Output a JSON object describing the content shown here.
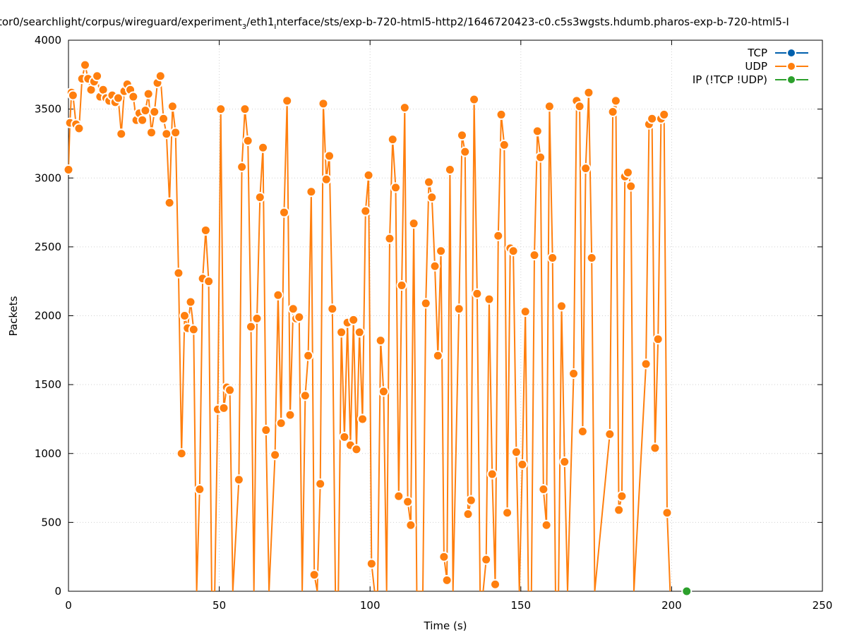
{
  "chart_data": {
    "type": "line",
    "title": "tor0/searchlight/corpus/wireguard/experiment",
    "title_sub": "3",
    "title_mid": "/eth1",
    "title_sub2": "I",
    "title_end": "nterface/sts/exp-b-720-html5-http2/1646720423-c0.c5s3wgsts.hdumb.pharos-exp-b-720-html5-I",
    "xlabel": "Time (s)",
    "ylabel": "Packets",
    "xlim": [
      0,
      250
    ],
    "ylim": [
      0,
      4000
    ],
    "x_ticks": [
      0,
      50,
      100,
      150,
      200,
      250
    ],
    "y_ticks": [
      0,
      500,
      1000,
      1500,
      2000,
      2500,
      3000,
      3500,
      4000
    ],
    "grid": true,
    "legend_position": "top-right",
    "colors": {
      "TCP": "#0060ad",
      "UDP": "#ff7f0e",
      "IP": "#2ca02c"
    },
    "series": [
      {
        "name": "TCP",
        "points": []
      },
      {
        "name": "UDP",
        "points": [
          [
            0,
            3060
          ],
          [
            0.5,
            3400
          ],
          [
            1,
            3620
          ],
          [
            1.5,
            3600
          ],
          [
            2.5,
            3390
          ],
          [
            3.5,
            3360
          ],
          [
            4.5,
            3720
          ],
          [
            5.5,
            3820
          ],
          [
            6.5,
            3720
          ],
          [
            7.5,
            3640
          ],
          [
            8.5,
            3700
          ],
          [
            9.5,
            3740
          ],
          [
            10.5,
            3590
          ],
          [
            11.5,
            3640
          ],
          [
            12.5,
            3580
          ],
          [
            13.5,
            3560
          ],
          [
            14.5,
            3600
          ],
          [
            15.5,
            3550
          ],
          [
            16.5,
            3580
          ],
          [
            17.5,
            3320
          ],
          [
            18.5,
            3630
          ],
          [
            19.5,
            3680
          ],
          [
            20.5,
            3640
          ],
          [
            21.5,
            3590
          ],
          [
            22.5,
            3420
          ],
          [
            23.5,
            3470
          ],
          [
            24.5,
            3420
          ],
          [
            25.5,
            3490
          ],
          [
            26.5,
            3610
          ],
          [
            27.5,
            3330
          ],
          [
            28.5,
            3480
          ],
          [
            29.5,
            3690
          ],
          [
            30.5,
            3740
          ],
          [
            31.5,
            3430
          ],
          [
            32.5,
            3320
          ],
          [
            33.5,
            2820
          ],
          [
            34.5,
            3520
          ],
          [
            35.5,
            3330
          ],
          [
            36.5,
            2310
          ],
          [
            37.5,
            1000
          ],
          [
            38.5,
            2000
          ],
          [
            39.5,
            1910
          ],
          [
            40.5,
            2100
          ],
          [
            41.5,
            1900
          ],
          [
            42.5,
            0
          ],
          [
            43.5,
            740
          ],
          [
            44.5,
            2270
          ],
          [
            45.5,
            2620
          ],
          [
            46.5,
            2250
          ],
          [
            47.5,
            0
          ],
          [
            48.5,
            0
          ],
          [
            49.5,
            1320
          ],
          [
            50.5,
            3500
          ],
          [
            51.5,
            1330
          ],
          [
            52.5,
            1480
          ],
          [
            53.5,
            1460
          ],
          [
            54.5,
            0
          ],
          [
            56.5,
            810
          ],
          [
            57.5,
            3080
          ],
          [
            58.5,
            3500
          ],
          [
            59.5,
            3270
          ],
          [
            60.5,
            1920
          ],
          [
            61.5,
            0
          ],
          [
            62.5,
            1980
          ],
          [
            63.5,
            2860
          ],
          [
            64.5,
            3220
          ],
          [
            65.5,
            1170
          ],
          [
            66.5,
            0
          ],
          [
            68.5,
            990
          ],
          [
            69.5,
            2150
          ],
          [
            70.5,
            1220
          ],
          [
            71.5,
            2750
          ],
          [
            72.5,
            3560
          ],
          [
            73.5,
            1280
          ],
          [
            74.5,
            2050
          ],
          [
            75.5,
            1980
          ],
          [
            76.5,
            1990
          ],
          [
            77.5,
            0
          ],
          [
            78.5,
            1420
          ],
          [
            79.5,
            1710
          ],
          [
            80.5,
            2900
          ],
          [
            81.5,
            120
          ],
          [
            82.5,
            0
          ],
          [
            83.5,
            780
          ],
          [
            84.5,
            3540
          ],
          [
            85.5,
            2990
          ],
          [
            86.5,
            3160
          ],
          [
            87.5,
            2050
          ],
          [
            88.5,
            0
          ],
          [
            89.5,
            0
          ],
          [
            90.5,
            1880
          ],
          [
            91.5,
            1120
          ],
          [
            92.5,
            1950
          ],
          [
            93.5,
            1060
          ],
          [
            94.5,
            1970
          ],
          [
            95.5,
            1030
          ],
          [
            96.5,
            1880
          ],
          [
            97.5,
            1250
          ],
          [
            98.5,
            2760
          ],
          [
            99.5,
            3020
          ],
          [
            100.5,
            200
          ],
          [
            101.5,
            0
          ],
          [
            102.5,
            0
          ],
          [
            103.5,
            1820
          ],
          [
            104.5,
            1450
          ],
          [
            105.5,
            0
          ],
          [
            106.5,
            2560
          ],
          [
            107.5,
            3280
          ],
          [
            108.5,
            2930
          ],
          [
            109.5,
            690
          ],
          [
            110.5,
            2220
          ],
          [
            111.5,
            3510
          ],
          [
            112.5,
            650
          ],
          [
            113.5,
            480
          ],
          [
            114.5,
            2670
          ],
          [
            115.5,
            0
          ],
          [
            117.5,
            0
          ],
          [
            118.5,
            2090
          ],
          [
            119.5,
            2970
          ],
          [
            120.5,
            2860
          ],
          [
            121.5,
            2360
          ],
          [
            122.5,
            1710
          ],
          [
            123.5,
            2470
          ],
          [
            124.5,
            250
          ],
          [
            125.5,
            80
          ],
          [
            126.5,
            3060
          ],
          [
            127.5,
            0
          ],
          [
            129.5,
            2050
          ],
          [
            130.5,
            3310
          ],
          [
            131.5,
            3190
          ],
          [
            132.5,
            560
          ],
          [
            133.5,
            660
          ],
          [
            134.5,
            3570
          ],
          [
            135.5,
            2160
          ],
          [
            136.5,
            0
          ],
          [
            137.5,
            0
          ],
          [
            138.5,
            230
          ],
          [
            139.5,
            2120
          ],
          [
            140.5,
            850
          ],
          [
            141.5,
            50
          ],
          [
            142.5,
            2580
          ],
          [
            143.5,
            3460
          ],
          [
            144.5,
            3240
          ],
          [
            145.5,
            570
          ],
          [
            146.5,
            2490
          ],
          [
            147.5,
            2470
          ],
          [
            148.5,
            1010
          ],
          [
            149.5,
            0
          ],
          [
            150.5,
            920
          ],
          [
            151.5,
            2030
          ],
          [
            152.5,
            0
          ],
          [
            153.5,
            0
          ],
          [
            154.5,
            2440
          ],
          [
            155.5,
            3340
          ],
          [
            156.5,
            3150
          ],
          [
            157.5,
            740
          ],
          [
            158.5,
            480
          ],
          [
            159.5,
            3520
          ],
          [
            160.5,
            2420
          ],
          [
            161.5,
            0
          ],
          [
            162.5,
            0
          ],
          [
            163.5,
            2070
          ],
          [
            164.5,
            940
          ],
          [
            165.5,
            0
          ],
          [
            167.5,
            1580
          ],
          [
            168.5,
            3560
          ],
          [
            169.5,
            3520
          ],
          [
            170.5,
            1160
          ],
          [
            171.5,
            3070
          ],
          [
            172.5,
            3620
          ],
          [
            173.5,
            2420
          ],
          [
            174.5,
            0
          ],
          [
            179.5,
            1140
          ],
          [
            180.5,
            3480
          ],
          [
            181.5,
            3560
          ],
          [
            182.5,
            590
          ],
          [
            183.5,
            690
          ],
          [
            184.5,
            3010
          ],
          [
            185.5,
            3040
          ],
          [
            186.5,
            2940
          ],
          [
            187.5,
            0
          ],
          [
            191.5,
            1650
          ],
          [
            192.5,
            3390
          ],
          [
            193.5,
            3430
          ],
          [
            194.5,
            1040
          ],
          [
            195.5,
            1830
          ],
          [
            196.5,
            3430
          ],
          [
            197.5,
            3460
          ],
          [
            198.5,
            570
          ],
          [
            199.5,
            0
          ]
        ]
      },
      {
        "name": "IP (!TCP  !UDP)",
        "points": [
          [
            205,
            0
          ]
        ]
      }
    ]
  }
}
